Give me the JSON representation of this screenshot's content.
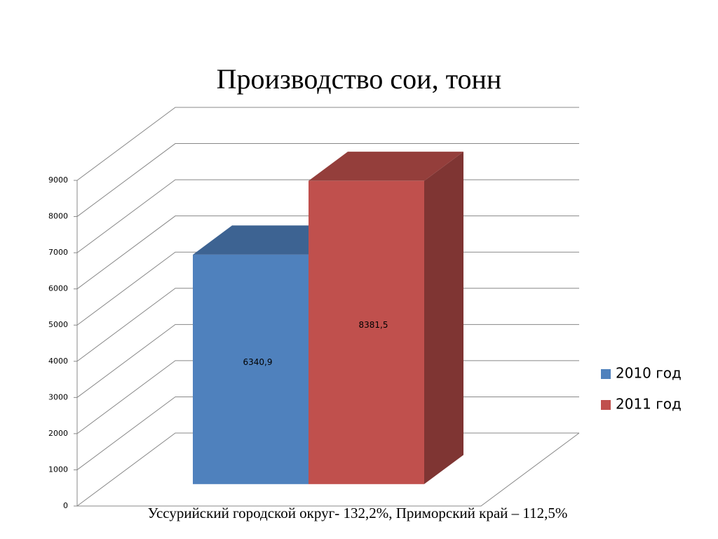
{
  "chart_data": {
    "type": "bar3d",
    "title": "Производство сои, тонн",
    "note": "Уссурийский городской округ- 132,2%, Приморский край – 112,5%",
    "categories": [
      null
    ],
    "series": [
      {
        "name": "2010 год",
        "color": "#4f81bd",
        "values": [
          6340.9
        ],
        "value_labels": [
          "6340,9"
        ]
      },
      {
        "name": "2011 год",
        "color": "#c0504d",
        "values": [
          8381.5
        ],
        "value_labels": [
          "8381,5"
        ]
      }
    ],
    "ylim": [
      0,
      9000
    ],
    "yticks": [
      0,
      1000,
      2000,
      3000,
      4000,
      5000,
      6000,
      7000,
      8000,
      9000
    ],
    "grid": true,
    "legend": "right"
  }
}
